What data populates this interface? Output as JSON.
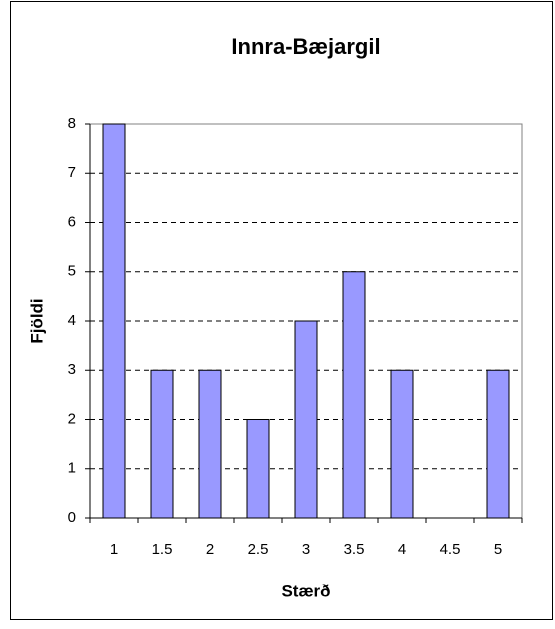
{
  "chart_data": {
    "type": "bar",
    "title": "Innra-Bæjargil",
    "x_label": "Stærð",
    "y_label": "Fjöldi",
    "categories": [
      "1",
      "1.5",
      "2",
      "2.5",
      "3",
      "3.5",
      "4",
      "4.5",
      "5"
    ],
    "values": [
      8,
      3,
      3,
      2,
      4,
      5,
      3,
      0,
      3
    ],
    "color": "#9999ff",
    "ylim": [
      0,
      8
    ],
    "yticks": [
      0,
      1,
      2,
      3,
      4,
      5,
      6,
      7,
      8
    ],
    "grid": true
  }
}
